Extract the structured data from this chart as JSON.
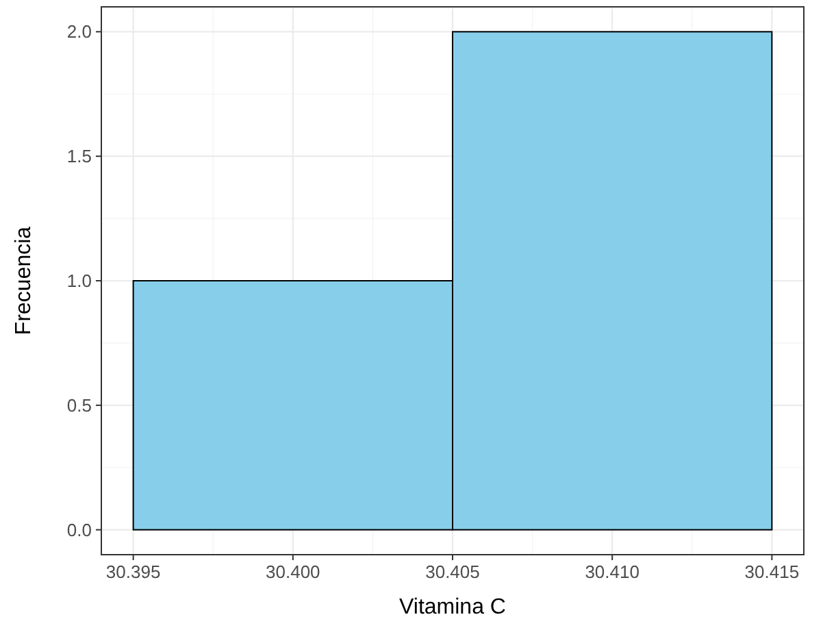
{
  "chart_data": {
    "type": "histogram",
    "xlabel": "Vitamina C",
    "ylabel": "Frecuencia",
    "bins": [
      30.395,
      30.405,
      30.415
    ],
    "values": [
      1,
      2
    ],
    "color": "#87ceeb",
    "xlim": [
      30.394,
      30.416
    ],
    "ylim": [
      -0.1,
      2.1
    ],
    "xticks": [
      {
        "value": 30.395,
        "label": "30.395"
      },
      {
        "value": 30.4,
        "label": "30.400"
      },
      {
        "value": 30.405,
        "label": "30.405"
      },
      {
        "value": 30.41,
        "label": "30.410"
      },
      {
        "value": 30.415,
        "label": "30.415"
      }
    ],
    "yticks": [
      {
        "value": 0,
        "label": "0.0"
      },
      {
        "value": 0.5,
        "label": "0.5"
      },
      {
        "value": 1,
        "label": "1.0"
      },
      {
        "value": 1.5,
        "label": "1.5"
      },
      {
        "value": 2,
        "label": "2.0"
      }
    ],
    "grid": true
  }
}
